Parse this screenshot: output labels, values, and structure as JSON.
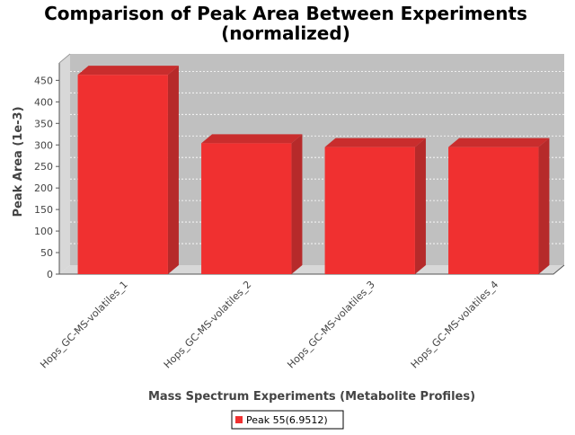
{
  "chart_data": {
    "type": "bar",
    "title": "Comparison of Peak Area Between Experiments\n(normalized)",
    "title_lines": [
      "Comparison of Peak Area Between Experiments",
      "(normalized)"
    ],
    "xlabel": "Mass Spectrum Experiments (Metabolite Profiles)",
    "ylabel": "Peak Area (1e-3)",
    "categories": [
      "Hops_GC-MS-volatiles_1",
      "Hops_GC-MS-volatiles_2",
      "Hops_GC-MS-volatiles_3",
      "Hops_GC-MS-volatiles_4"
    ],
    "series": [
      {
        "name": "Peak 55(6.9512)",
        "values": [
          463,
          304,
          295,
          295
        ]
      }
    ],
    "ylim": [
      0,
      480
    ],
    "yticks": [
      0,
      50,
      100,
      150,
      200,
      250,
      300,
      350,
      400,
      450
    ],
    "grid": true,
    "legend": "bottom-center",
    "style": "3d",
    "colors": {
      "bar_front": "#f03030",
      "bar_side": "#b62a2a",
      "bar_top": "#c92d2d",
      "plot_back": "#c0c0c0",
      "plot_wall": "#d8d8d8",
      "plot_floor": "#d8d8d8",
      "grid": "#ffffff"
    }
  }
}
